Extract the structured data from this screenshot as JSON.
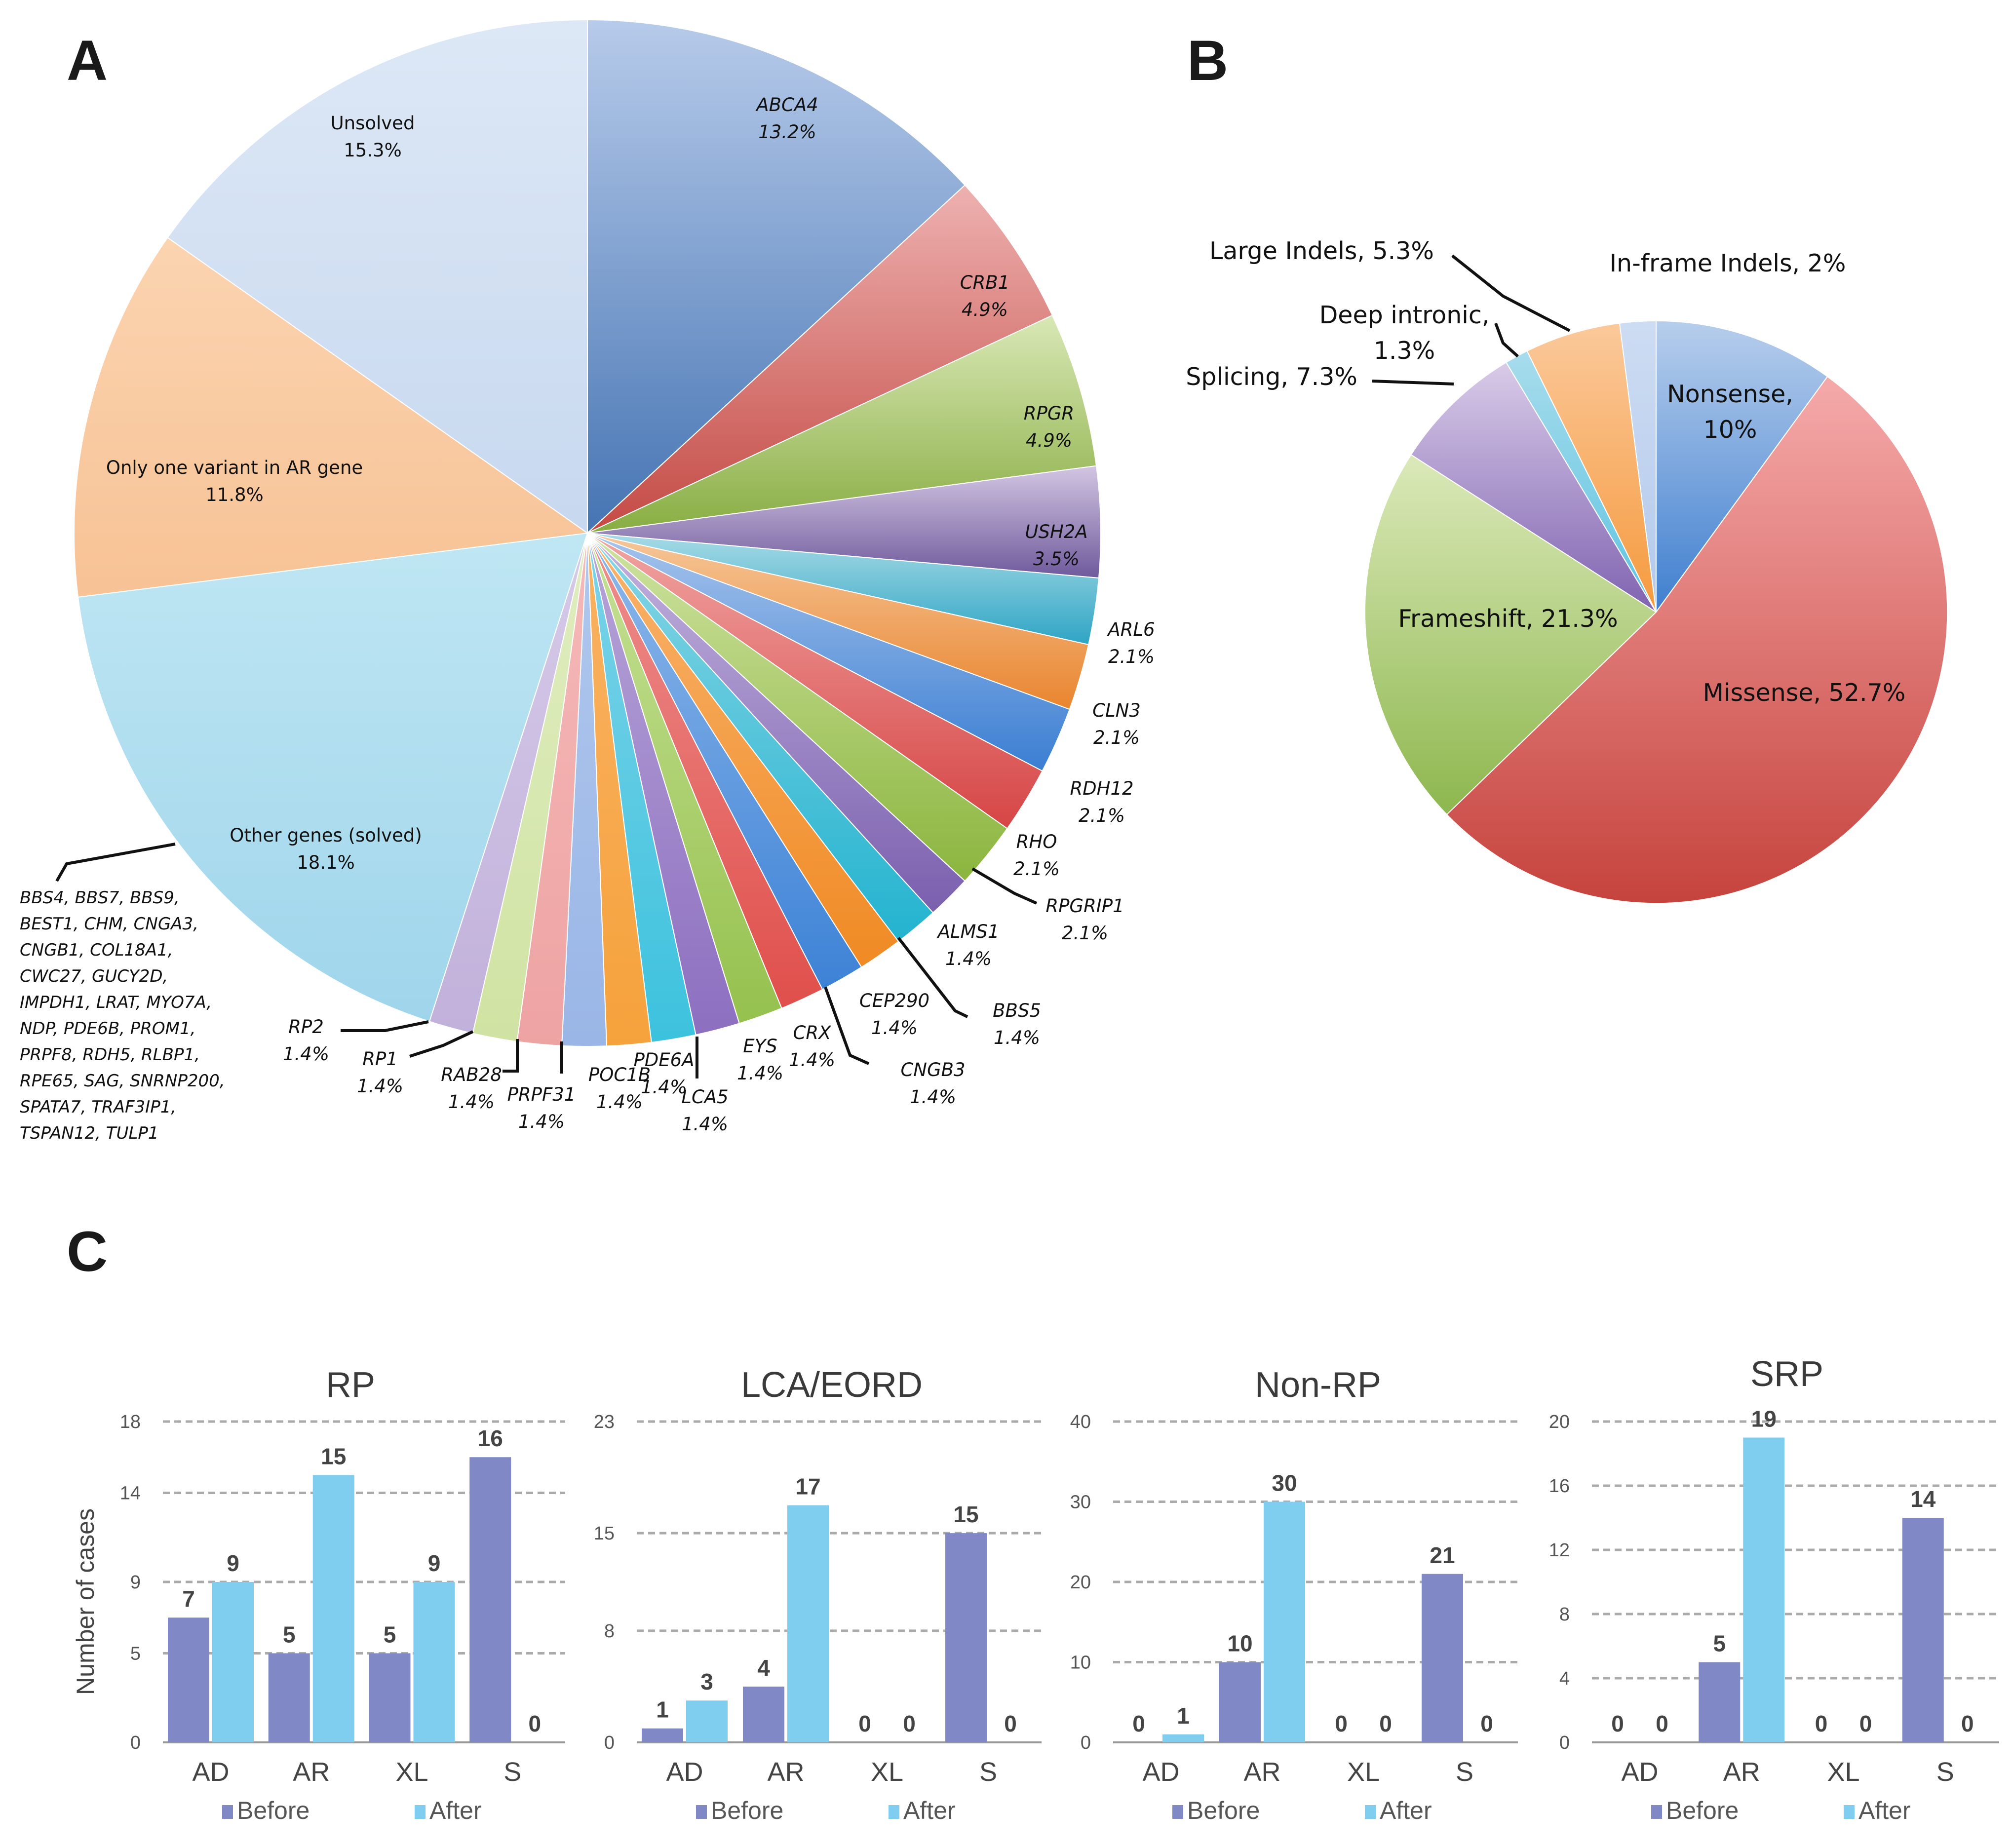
{
  "panels": {
    "a": "A",
    "b": "B",
    "c": "C"
  },
  "chart_data": [
    {
      "type": "pie",
      "panel": "A",
      "slices": [
        {
          "label": "ABCA4",
          "value": 13.2,
          "pct": "13.2%",
          "c1": "#b7cbea",
          "c2": "#4574b3",
          "italic": true
        },
        {
          "label": "CRB1",
          "value": 4.9,
          "pct": "4.9%",
          "c1": "#edb1b0",
          "c2": "#c44a44",
          "italic": true
        },
        {
          "label": "RPGR",
          "value": 4.9,
          "pct": "4.9%",
          "c1": "#d9e8b6",
          "c2": "#88ad42",
          "italic": true
        },
        {
          "label": "USH2A",
          "value": 3.5,
          "pct": "3.5%",
          "c1": "#d2c6e2",
          "c2": "#6f5a9c",
          "italic": true
        },
        {
          "label": "ARL6",
          "value": 2.1,
          "pct": "2.1%",
          "c1": "#a8dbe6",
          "c2": "#2ea4c4",
          "italic": true
        },
        {
          "label": "CLN3",
          "value": 2.1,
          "pct": "2.1%",
          "c1": "#f6c79a",
          "c2": "#e9852f",
          "italic": true
        },
        {
          "label": "RDH12",
          "value": 2.1,
          "pct": "2.1%",
          "c1": "#a7c4ec",
          "c2": "#3a7ed2",
          "italic": true
        },
        {
          "label": "RHO",
          "value": 2.1,
          "pct": "2.1%",
          "c1": "#f0a5a3",
          "c2": "#d64545",
          "italic": true
        },
        {
          "label": "RPGRIP1",
          "value": 2.1,
          "pct": "2.1%",
          "c1": "#cfe3a1",
          "c2": "#8bb53e",
          "italic": true
        },
        {
          "label": "ALMS1",
          "value": 1.4,
          "pct": "1.4%",
          "c1": "#c3b3de",
          "c2": "#7a5fae",
          "italic": true
        },
        {
          "label": "BBS5",
          "value": 1.4,
          "pct": "1.4%",
          "c1": "#88d6e5",
          "c2": "#23b3cf",
          "italic": true
        },
        {
          "label": "CEP290",
          "value": 1.4,
          "pct": "1.4%",
          "c1": "#f8b46d",
          "c2": "#f08a24",
          "italic": true
        },
        {
          "label": "CNGB3",
          "value": 1.4,
          "pct": "1.4%",
          "c1": "#8eb8ea",
          "c2": "#3d82d6",
          "italic": true
        },
        {
          "label": "CRX",
          "value": 1.4,
          "pct": "1.4%",
          "c1": "#ed8f8d",
          "c2": "#e04f4b",
          "italic": true
        },
        {
          "label": "EYS",
          "value": 1.4,
          "pct": "1.4%",
          "c1": "#c6e196",
          "c2": "#95c14e",
          "italic": true
        },
        {
          "label": "LCA5",
          "value": 1.4,
          "pct": "1.4%",
          "c1": "#b7a5d8",
          "c2": "#8d6fc0",
          "italic": true
        },
        {
          "label": "PDE6A",
          "value": 1.4,
          "pct": "1.4%",
          "c1": "#7dd3e8",
          "c2": "#3cc2de",
          "italic": true
        },
        {
          "label": "POC1B",
          "value": 1.4,
          "pct": "1.4%",
          "c1": "#f9b263",
          "c2": "#f6a23c",
          "italic": true
        },
        {
          "label": "PRPF31",
          "value": 1.4,
          "pct": "1.4%",
          "c1": "#b0c8ee",
          "c2": "#9ab6e6",
          "italic": true
        },
        {
          "label": "RAB28",
          "value": 1.4,
          "pct": "1.4%",
          "c1": "#f5b9b8",
          "c2": "#eea3a3",
          "italic": true
        },
        {
          "label": "RP1",
          "value": 1.4,
          "pct": "1.4%",
          "c1": "#e0edc0",
          "c2": "#d0e3a3",
          "italic": true
        },
        {
          "label": "RP2",
          "value": 1.4,
          "pct": "1.4%",
          "c1": "#d6cae8",
          "c2": "#c1b1db",
          "italic": true
        },
        {
          "label": "Other genes (solved)",
          "value": 18.1,
          "pct": "18.1%",
          "c1": "#bfe6f3",
          "c2": "#9fd5eb",
          "italic": false
        },
        {
          "label": "Only one variant in AR gene",
          "value": 11.8,
          "pct": "11.8%",
          "c1": "#fbd4b0",
          "c2": "#f7c295",
          "italic": false
        },
        {
          "label": "Unsolved",
          "value": 15.3,
          "pct": "15.3%",
          "c1": "#dde8f6",
          "c2": "#c7d8ef",
          "italic": false
        }
      ],
      "other_genes_list": [
        "BBS4, BBS7, BBS9,",
        "BEST1, CHM, CNGA3,",
        "CNGB1, COL18A1,",
        "CWC27, GUCY2D,",
        "IMPDH1, LRAT, MYO7A,",
        "NDP, PDE6B, PROM1,",
        "PRPF8, RDH5, RLBP1,",
        "RPE65, SAG, SNRNP200,",
        "SPATA7, TRAF3IP1,",
        "TSPAN12, TULP1"
      ]
    },
    {
      "type": "pie",
      "panel": "B",
      "slices": [
        {
          "label": "Nonsense,",
          "pct": "10%",
          "value": 10,
          "c1": "#b7ceec",
          "c2": "#3f7fcf"
        },
        {
          "label": "Missense, 52.7%",
          "pct": "",
          "value": 52.7,
          "c1": "#f5aaaa",
          "c2": "#c6433d"
        },
        {
          "label": "Frameshift, 21.3%",
          "pct": "",
          "value": 21.3,
          "c1": "#dbe9b9",
          "c2": "#8db74e"
        },
        {
          "label": "Splicing, 7.3%",
          "pct": "",
          "value": 7.3,
          "c1": "#d9cbe8",
          "c2": "#7f63b0"
        },
        {
          "label": "Deep intronic,",
          "pct": "1.3%",
          "value": 1.3,
          "c1": "#a8dcec",
          "c2": "#5ec4e0"
        },
        {
          "label": "Large Indels, 5.3%",
          "pct": "",
          "value": 5.3,
          "c1": "#fbc99b",
          "c2": "#f59a3e"
        },
        {
          "label": "In-frame Indels, 2%",
          "pct": "",
          "value": 2,
          "c1": "#cddcf2",
          "c2": "#b3c9ec"
        }
      ]
    },
    {
      "type": "bar",
      "panel": "C",
      "title": "RP",
      "ylabel": "Number of cases",
      "categories": [
        "AD",
        "AR",
        "XL",
        "S"
      ],
      "ylim": [
        0,
        18
      ],
      "ticks": [
        0,
        5,
        9,
        14,
        18
      ],
      "series": [
        {
          "name": "Before",
          "values": [
            7,
            5,
            5,
            16
          ]
        },
        {
          "name": "After",
          "values": [
            9,
            15,
            9,
            0
          ]
        }
      ]
    },
    {
      "type": "bar",
      "panel": "C",
      "title": "LCA/EORD",
      "categories": [
        "AD",
        "AR",
        "XL",
        "S"
      ],
      "ylim": [
        0,
        23
      ],
      "ticks": [
        0,
        8,
        15,
        23
      ],
      "series": [
        {
          "name": "Before",
          "values": [
            1,
            4,
            0,
            15
          ]
        },
        {
          "name": "After",
          "values": [
            3,
            17,
            0,
            0
          ]
        }
      ]
    },
    {
      "type": "bar",
      "panel": "C",
      "title": "Non-RP",
      "categories": [
        "AD",
        "AR",
        "XL",
        "S"
      ],
      "ylim": [
        0,
        40
      ],
      "ticks": [
        0,
        10,
        20,
        30,
        40
      ],
      "series": [
        {
          "name": "Before",
          "values": [
            0,
            10,
            0,
            21
          ]
        },
        {
          "name": "After",
          "values": [
            1,
            30,
            0,
            0
          ]
        }
      ]
    },
    {
      "type": "bar",
      "panel": "C",
      "title": "SRP",
      "categories": [
        "AD",
        "AR",
        "XL",
        "S"
      ],
      "ylim": [
        0,
        20
      ],
      "ticks": [
        0,
        4,
        8,
        12,
        16,
        20
      ],
      "series": [
        {
          "name": "Before",
          "values": [
            0,
            5,
            0,
            14
          ]
        },
        {
          "name": "After",
          "values": [
            0,
            19,
            0,
            0
          ]
        }
      ]
    }
  ],
  "bar_colors": {
    "before": "#8188c6",
    "after": "#7fcdef",
    "grid": "#aaaaaa",
    "axis": "#999999"
  }
}
